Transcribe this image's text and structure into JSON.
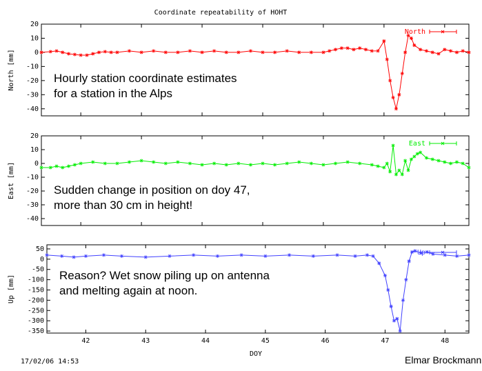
{
  "title": "Coordinate repeatability of HOHT",
  "xlabel": "DOY",
  "timestamp": "17/02/06 14:53",
  "author": "Elmar Brockmann",
  "chart_data": [
    {
      "type": "line",
      "ylabel": "North [mm]",
      "legend": "North",
      "legend_position": "top-right",
      "color": "#ff0000",
      "xlim": [
        41.35,
        48.4
      ],
      "ylim": [
        -45,
        20
      ],
      "yticks": [
        20,
        10,
        0,
        -10,
        -20,
        -30,
        -40
      ],
      "grid": false,
      "annotation": [
        "Hourly station coordinate estimates",
        "for a station in the Alps"
      ],
      "x": [
        41.35,
        41.5,
        41.6,
        41.7,
        41.8,
        41.9,
        42.0,
        42.1,
        42.2,
        42.3,
        42.4,
        42.5,
        42.6,
        42.8,
        43.0,
        43.2,
        43.4,
        43.6,
        43.8,
        44.0,
        44.2,
        44.4,
        44.6,
        44.8,
        45.0,
        45.2,
        45.4,
        45.6,
        45.8,
        46.0,
        46.1,
        46.2,
        46.3,
        46.4,
        46.5,
        46.6,
        46.7,
        46.8,
        46.9,
        47.0,
        47.05,
        47.1,
        47.15,
        47.2,
        47.25,
        47.3,
        47.35,
        47.4,
        47.45,
        47.5,
        47.6,
        47.7,
        47.8,
        47.9,
        48.0,
        48.1,
        48.2,
        48.3,
        48.4
      ],
      "values": [
        0,
        0.5,
        1,
        0,
        -1,
        -1.5,
        -2,
        -2,
        -1,
        0,
        0.5,
        0,
        0,
        1,
        0,
        1,
        0,
        0,
        1,
        0,
        1,
        0,
        0,
        1,
        0,
        0,
        1,
        0,
        0,
        0,
        1,
        2,
        3,
        3,
        2,
        3,
        2,
        1,
        1,
        8,
        -5,
        -20,
        -32,
        -40,
        -30,
        -15,
        0,
        12,
        10,
        5,
        2,
        1,
        0,
        -1,
        2,
        1,
        0,
        1,
        0
      ]
    },
    {
      "type": "line",
      "ylabel": "East [mm]",
      "legend": "East",
      "legend_position": "top-right",
      "color": "#00ee00",
      "xlim": [
        41.35,
        48.4
      ],
      "ylim": [
        -45,
        20
      ],
      "yticks": [
        20,
        10,
        0,
        -10,
        -20,
        -30,
        -40
      ],
      "grid": false,
      "annotation": [
        "Sudden change in position on doy 47,",
        "more than 30 cm in height!"
      ],
      "x": [
        41.35,
        41.5,
        41.6,
        41.7,
        41.8,
        41.9,
        42.0,
        42.2,
        42.4,
        42.6,
        42.8,
        43.0,
        43.2,
        43.4,
        43.6,
        43.8,
        44.0,
        44.2,
        44.4,
        44.6,
        44.8,
        45.0,
        45.2,
        45.4,
        45.6,
        45.8,
        46.0,
        46.2,
        46.4,
        46.6,
        46.8,
        46.9,
        47.0,
        47.05,
        47.1,
        47.15,
        47.2,
        47.25,
        47.3,
        47.35,
        47.4,
        47.45,
        47.5,
        47.55,
        47.6,
        47.7,
        47.8,
        47.9,
        48.0,
        48.1,
        48.2,
        48.3,
        48.4
      ],
      "values": [
        -3,
        -3,
        -2,
        -3,
        -2,
        -1,
        0,
        1,
        0,
        0,
        1,
        2,
        1,
        0,
        1,
        0,
        -1,
        0,
        -1,
        0,
        -1,
        0,
        -1,
        0,
        1,
        0,
        -1,
        0,
        1,
        0,
        -1,
        -2,
        -3,
        0,
        -6,
        13,
        -8,
        -5,
        -8,
        2,
        -5,
        3,
        5,
        7,
        8,
        4,
        3,
        2,
        1,
        0,
        1,
        0,
        -3
      ]
    },
    {
      "type": "line",
      "ylabel": "Up [mm]",
      "legend": "Up",
      "legend_position": "top-right",
      "color": "#4040ff",
      "xlim": [
        41.35,
        48.4
      ],
      "ylim": [
        -360,
        70
      ],
      "yticks": [
        50,
        0,
        -50,
        -100,
        -150,
        -200,
        -250,
        -300,
        -350
      ],
      "grid": false,
      "annotation": [
        "Reason?  Wet snow piling up on antenna",
        "and melting again at noon."
      ],
      "x": [
        41.35,
        41.6,
        41.8,
        42.0,
        42.3,
        42.6,
        43.0,
        43.4,
        43.8,
        44.2,
        44.6,
        45.0,
        45.4,
        45.8,
        46.2,
        46.5,
        46.7,
        46.8,
        46.9,
        47.0,
        47.05,
        47.1,
        47.15,
        47.2,
        47.25,
        47.3,
        47.35,
        47.4,
        47.45,
        47.5,
        47.6,
        47.7,
        47.8,
        48.0,
        48.2,
        48.4
      ],
      "values": [
        20,
        15,
        10,
        15,
        20,
        15,
        10,
        15,
        20,
        15,
        20,
        15,
        20,
        15,
        20,
        15,
        20,
        15,
        -20,
        -80,
        -150,
        -230,
        -300,
        -290,
        -350,
        -200,
        -100,
        -10,
        35,
        40,
        30,
        35,
        25,
        20,
        15,
        20
      ]
    }
  ],
  "x_ticks": [
    42,
    43,
    44,
    45,
    46,
    47,
    48
  ]
}
